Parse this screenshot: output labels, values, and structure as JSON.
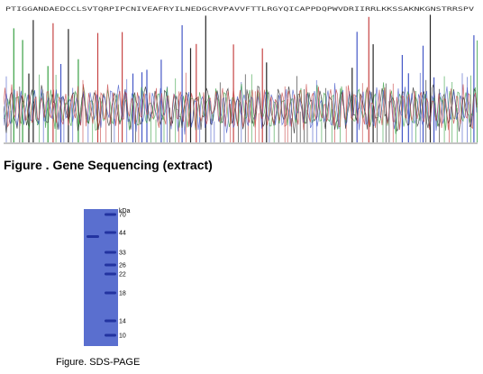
{
  "sequencing": {
    "sequence": "PTIGGANDAEDCCLSVTQRPIPCNIVEAFRYILNEDGCRVPAVVFTTLRGYQICAPPDQPWVDRIIRRLKKSSAKNKGNSTRRSPV",
    "trace_colors": [
      "#1a1a1a",
      "#2e9b3a",
      "#3a4fc4",
      "#c43a3a"
    ],
    "caption": "Figure . Gene Sequencing (extract)"
  },
  "sds_page": {
    "unit_label": "kDa",
    "markers": [
      "70",
      "44",
      "33",
      "26",
      "22",
      "18",
      "14",
      "10"
    ],
    "lane_color": "#5a6fcf",
    "band_color": "#2233a0",
    "caption": "Figure. SDS-PAGE"
  }
}
